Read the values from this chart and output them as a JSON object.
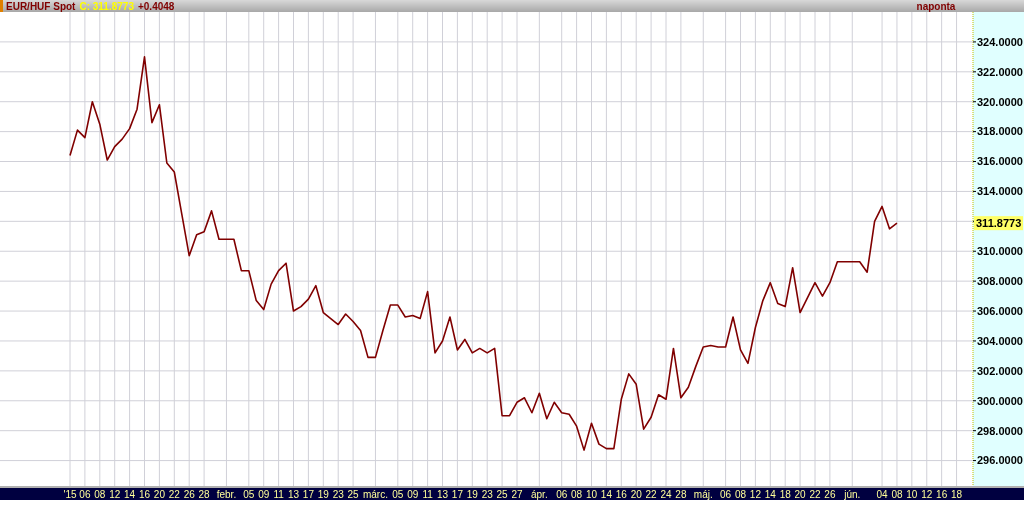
{
  "chart_data": {
    "type": "line",
    "title": "EUR/HUF Spot",
    "annotations": [
      "C: 311.8773",
      "+0.4048",
      "naponta",
      "311.8773"
    ],
    "categories": [
      "'15",
      null,
      "06",
      null,
      "08",
      null,
      "12",
      null,
      "14",
      null,
      "16",
      null,
      "20",
      null,
      "22",
      null,
      "26",
      null,
      "28",
      null,
      null,
      "febr.",
      null,
      null,
      "05",
      null,
      "09",
      null,
      "11",
      null,
      "13",
      null,
      "17",
      null,
      "19",
      null,
      "23",
      null,
      "25",
      null,
      null,
      "márc.",
      null,
      null,
      "05",
      null,
      "09",
      null,
      "11",
      null,
      "13",
      null,
      "17",
      null,
      "19",
      null,
      "23",
      null,
      "25",
      null,
      "27",
      null,
      null,
      "ápr.",
      null,
      null,
      "06",
      null,
      "08",
      null,
      "10",
      null,
      "14",
      null,
      "16",
      null,
      "20",
      null,
      "22",
      null,
      "24",
      null,
      "28",
      null,
      null,
      "máj.",
      null,
      null,
      "06",
      null,
      "08",
      null,
      "12",
      null,
      "14",
      null,
      "18",
      null,
      "20",
      null,
      "22",
      null,
      "26",
      null,
      null,
      "jún.",
      null,
      null,
      null,
      "04",
      null,
      "08",
      null,
      "10",
      null,
      "12",
      null,
      "16",
      null,
      "18"
    ],
    "series": [
      {
        "color": "#800000",
        "values": [
          316.4,
          318.1,
          317.6,
          320.0,
          318.5,
          316.1,
          317.0,
          317.5,
          318.2,
          319.5,
          323.0,
          318.6,
          319.8,
          315.9,
          315.3,
          312.5,
          309.7,
          311.1,
          311.3,
          312.7,
          310.8,
          310.8,
          310.8,
          308.7,
          308.7,
          306.7,
          306.1,
          307.8,
          308.7,
          309.2,
          306.0,
          306.3,
          306.8,
          307.7,
          305.9,
          305.5,
          305.1,
          305.8,
          305.3,
          304.7,
          302.9,
          302.9,
          304.7,
          306.4,
          306.4,
          305.6,
          305.7,
          305.5,
          307.3,
          303.2,
          304.0,
          305.6,
          303.4,
          304.1,
          303.2,
          303.5,
          303.2,
          303.5,
          299.0,
          299.0,
          299.9,
          300.2,
          299.2,
          300.5,
          298.8,
          299.9,
          299.2,
          299.1,
          298.3,
          296.7,
          298.5,
          297.1,
          296.8,
          296.8,
          300.1,
          301.8,
          301.1,
          298.1,
          298.9,
          300.4,
          300.1,
          303.5,
          300.2,
          300.9,
          302.3,
          303.6,
          303.7,
          303.6,
          303.6,
          305.6,
          303.4,
          302.5,
          304.9,
          306.7,
          307.9,
          306.5,
          306.3,
          308.9,
          305.9,
          306.9,
          307.9,
          307.0,
          307.9,
          309.3,
          309.3,
          309.3,
          309.3,
          308.6,
          312.0,
          313.0,
          311.5,
          311.8773,
          null,
          null,
          null,
          null,
          null,
          null,
          null,
          null
        ]
      }
    ],
    "ylim": [
      294.3,
      326
    ],
    "yticks": [
      {
        "value": 296,
        "label": "296.0000"
      },
      {
        "value": 298,
        "label": "298.0000"
      },
      {
        "value": 300,
        "label": "300.0000"
      },
      {
        "value": 302,
        "label": "302.0000"
      },
      {
        "value": 304,
        "label": "304.0000"
      },
      {
        "value": 306,
        "label": "306.0000"
      },
      {
        "value": 308,
        "label": "308.0000"
      },
      {
        "value": 310,
        "label": "310.0000"
      },
      {
        "value": 312,
        "label": null
      },
      {
        "value": 314,
        "label": "314.0000"
      },
      {
        "value": 316,
        "label": "316.0000"
      },
      {
        "value": 318,
        "label": "318.0000"
      },
      {
        "value": 320,
        "label": "320.0000"
      },
      {
        "value": 322,
        "label": "322.0000"
      },
      {
        "value": 324,
        "label": "324.0000"
      }
    ],
    "grid": true,
    "marker": "none",
    "line_style": "solid"
  }
}
